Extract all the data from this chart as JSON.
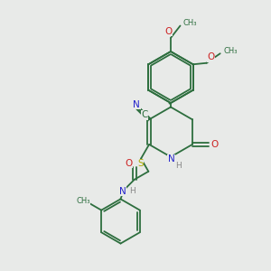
{
  "background_color": "#e8eae8",
  "bond_color": "#2d6e3e",
  "N_color": "#2222cc",
  "O_color": "#cc2222",
  "S_color": "#aaaa00",
  "C_label_color": "#2d6e3e",
  "H_color": "#888888",
  "figsize": [
    3.0,
    3.0
  ],
  "dpi": 100,
  "xlim": [
    0,
    10
  ],
  "ylim": [
    0,
    10
  ]
}
